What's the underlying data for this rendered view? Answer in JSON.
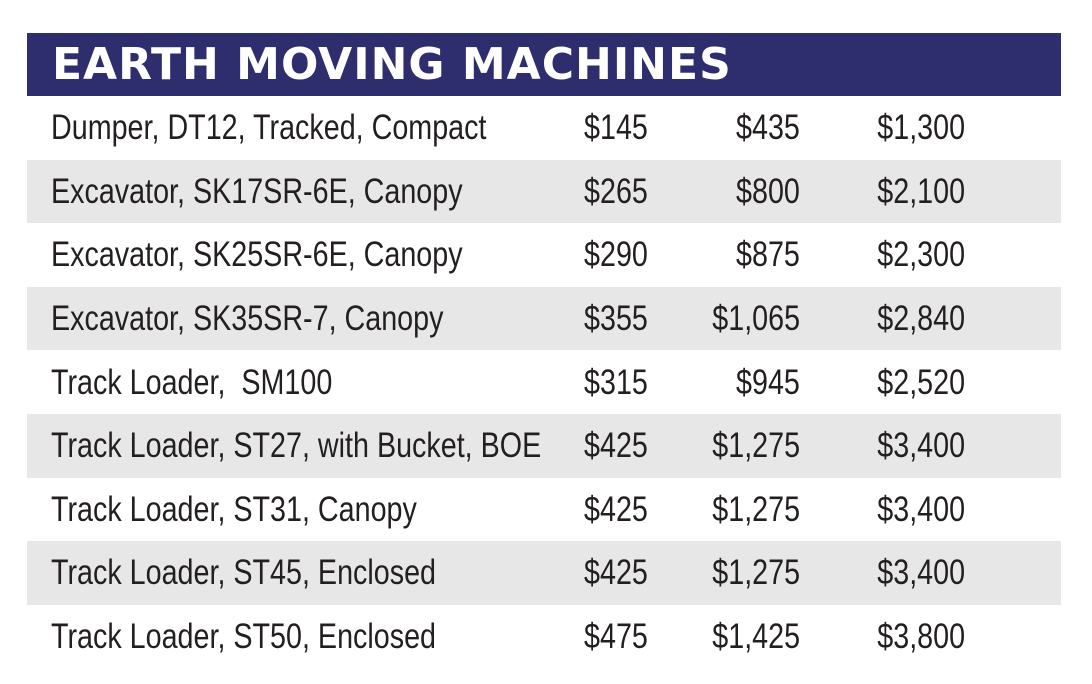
{
  "header": {
    "title": "EARTH MOVING MACHINES",
    "background_color": "#2e2d6e",
    "text_color": "#ffffff"
  },
  "row_shade_color": "#e7e7e8",
  "rows": [
    {
      "name": "Dumper, DT12, Tracked, Compact",
      "price1": "$145",
      "price2": "$435",
      "price3": "$1,300"
    },
    {
      "name": "Excavator, SK17SR-6E, Canopy",
      "price1": "$265",
      "price2": "$800",
      "price3": "$2,100"
    },
    {
      "name": "Excavator, SK25SR-6E, Canopy",
      "price1": "$290",
      "price2": "$875",
      "price3": "$2,300"
    },
    {
      "name": "Excavator, SK35SR-7, Canopy",
      "price1": "$355",
      "price2": "$1,065",
      "price3": "$2,840"
    },
    {
      "name": "Track Loader,  SM100",
      "price1": "$315",
      "price2": "$945",
      "price3": "$2,520"
    },
    {
      "name": "Track Loader, ST27, with Bucket, BOE",
      "price1": "$425",
      "price2": "$1,275",
      "price3": "$3,400"
    },
    {
      "name": "Track Loader, ST31, Canopy",
      "price1": "$425",
      "price2": "$1,275",
      "price3": "$3,400"
    },
    {
      "name": "Track Loader, ST45, Enclosed",
      "price1": "$425",
      "price2": "$1,275",
      "price3": "$3,400"
    },
    {
      "name": "Track Loader, ST50, Enclosed",
      "price1": "$475",
      "price2": "$1,425",
      "price3": "$3,800"
    }
  ]
}
